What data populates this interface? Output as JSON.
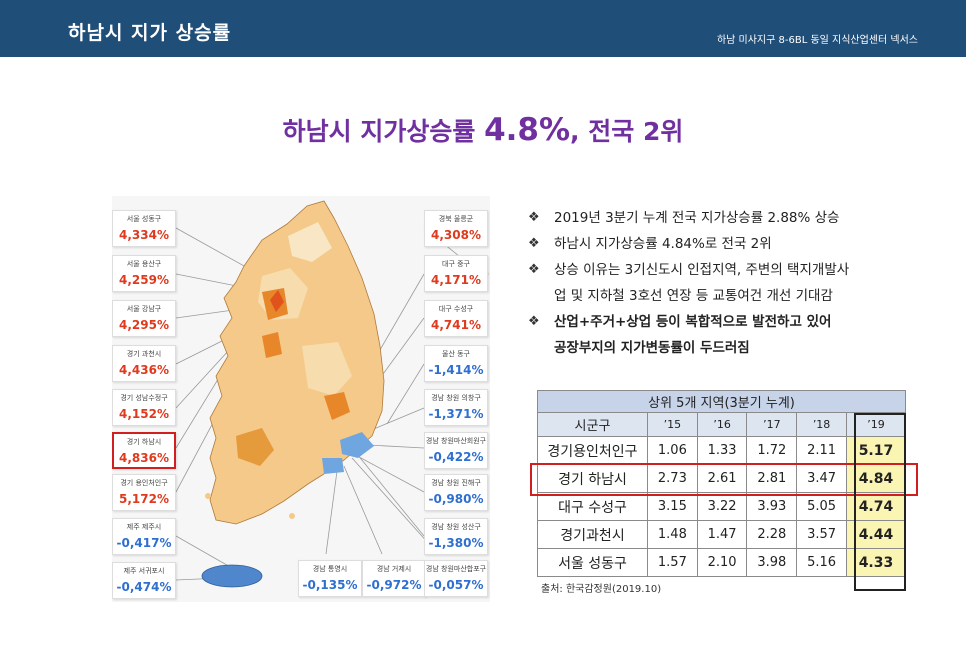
{
  "header": {
    "title": "하남시 지가 상승률",
    "subtitle": "하남 미사지구 8-6BL 동일 지식산업센터 넥서스"
  },
  "headline": {
    "prefix": "하남시 지가상승률 ",
    "rate": "4.8%",
    "suffix": ", 전국 2위"
  },
  "map": {
    "left_labels": [
      {
        "name": "서울 성동구",
        "value": "4,334%",
        "trend": "up"
      },
      {
        "name": "서울 용산구",
        "value": "4,259%",
        "trend": "up"
      },
      {
        "name": "서울 강남구",
        "value": "4,295%",
        "trend": "up"
      },
      {
        "name": "경기 과천시",
        "value": "4,436%",
        "trend": "up"
      },
      {
        "name": "경기 성남수정구",
        "value": "4,152%",
        "trend": "up"
      },
      {
        "name": "경기 하남시",
        "value": "4,836%",
        "trend": "up"
      },
      {
        "name": "경기 용인처인구",
        "value": "5,172%",
        "trend": "up"
      },
      {
        "name": "제주 제주시",
        "value": "-0,417%",
        "trend": "down"
      },
      {
        "name": "제주 서귀포시",
        "value": "-0,474%",
        "trend": "down"
      }
    ],
    "right_labels": [
      {
        "name": "경북 울릉군",
        "value": "4,308%",
        "trend": "up"
      },
      {
        "name": "대구 중구",
        "value": "4,171%",
        "trend": "up"
      },
      {
        "name": "대구 수성구",
        "value": "4,741%",
        "trend": "up"
      },
      {
        "name": "울산 동구",
        "value": "-1,414%",
        "trend": "down"
      },
      {
        "name": "경남 창원 의창구",
        "value": "-1,371%",
        "trend": "down"
      },
      {
        "name": "경남 창원마산회원구",
        "value": "-0,422%",
        "trend": "down"
      },
      {
        "name": "경남 창원 진해구",
        "value": "-0,980%",
        "trend": "down"
      },
      {
        "name": "경남 창원 성산구",
        "value": "-1,380%",
        "trend": "down"
      }
    ],
    "bottom_labels": [
      {
        "name": "경남 통영시",
        "value": "-0,135%",
        "trend": "down"
      },
      {
        "name": "경남 거제시",
        "value": "-0,972%",
        "trend": "down"
      },
      {
        "name": "경남 창원마산합포구",
        "value": "-0,057%",
        "trend": "down"
      }
    ],
    "colors": {
      "up": "#e03a1e",
      "down": "#2f6fd0",
      "highlight": "#d11f1f"
    }
  },
  "bullets": [
    {
      "marker": "❖",
      "text": "2019년 3분기 누계 전국 지가상승률 2.88% 상승",
      "bold": false
    },
    {
      "marker": "❖",
      "text": "하남시 지가상승률 4.84%로 전국 2위",
      "bold": false
    },
    {
      "marker": "❖",
      "text": "상승 이유는 3기신도시 인접지역, 주변의 택지개발사",
      "cont": "업 및 지하철 3호선 연장 등 교통여건 개선 기대감",
      "bold": false
    },
    {
      "marker": "❖",
      "text": "산업+주거+상업 등이 복합적으로 발전하고 있어",
      "cont": "공장부지의 지가변동률이 두드러짐",
      "bold": true
    }
  ],
  "table": {
    "caption": "상위 5개 지역(3분기 누계)",
    "headers": [
      "시군구",
      "’15",
      "’16",
      "’17",
      "’18",
      "’19"
    ],
    "rows": [
      [
        "경기용인처인구",
        "1.06",
        "1.33",
        "1.72",
        "2.11",
        "5.17"
      ],
      [
        "경기 하남시",
        "2.73",
        "2.61",
        "2.81",
        "3.47",
        "4.84"
      ],
      [
        "대구 수성구",
        "3.15",
        "3.22",
        "3.93",
        "5.05",
        "4.74"
      ],
      [
        "경기과천시",
        "1.48",
        "1.47",
        "2.28",
        "3.57",
        "4.44"
      ],
      [
        "서울 성동구",
        "1.57",
        "2.10",
        "3.98",
        "5.16",
        "4.33"
      ]
    ],
    "source": "출처: 한국감정원(2019.10)"
  }
}
